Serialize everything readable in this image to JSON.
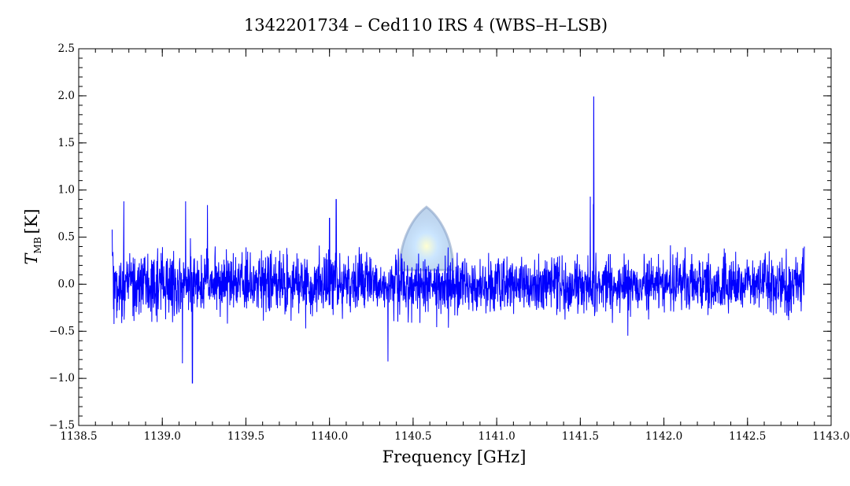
{
  "chart_data": {
    "type": "line",
    "title": "1342201734 – Ced110 IRS 4 (WBS–H–LSB)",
    "xlabel": "Frequency [GHz]",
    "ylabel": "T",
    "ylabel_subscript": "MB",
    "ylabel_unit": "[K]",
    "xlim": [
      1138.5,
      1143.0
    ],
    "ylim": [
      -1.5,
      2.5
    ],
    "x_ticks": [
      "1138.5",
      "1139.0",
      "1139.5",
      "1140.0",
      "1140.5",
      "1141.0",
      "1141.5",
      "1142.0",
      "1142.5",
      "1143.0"
    ],
    "y_ticks": [
      "2.5",
      "2.0",
      "1.5",
      "1.0",
      "0.5",
      "0.0",
      "−0.5",
      "−1.0",
      "−1.5"
    ],
    "x_tick_values": [
      1138.5,
      1139.0,
      1139.5,
      1140.0,
      1140.5,
      1141.0,
      1141.5,
      1142.0,
      1142.5,
      1143.0
    ],
    "y_tick_values": [
      2.5,
      2.0,
      1.5,
      1.0,
      0.5,
      0.0,
      -0.5,
      -1.0,
      -1.5
    ],
    "grid": false,
    "series": [
      {
        "color": "#0000ff",
        "x_range": [
          1138.7,
          1142.84
        ],
        "baseline": 0.0,
        "noise_rms": 0.15,
        "notable_points": [
          {
            "x": 1138.7,
            "y": 0.58
          },
          {
            "x": 1138.77,
            "y": 0.88
          },
          {
            "x": 1139.12,
            "y": -0.84
          },
          {
            "x": 1139.14,
            "y": 0.88
          },
          {
            "x": 1139.18,
            "y": -1.05
          },
          {
            "x": 1139.27,
            "y": 0.84
          },
          {
            "x": 1140.0,
            "y": 0.7
          },
          {
            "x": 1140.04,
            "y": 0.9
          },
          {
            "x": 1140.35,
            "y": -0.82
          },
          {
            "x": 1141.56,
            "y": 0.93
          },
          {
            "x": 1141.58,
            "y": 1.99
          },
          {
            "x": 1142.84,
            "y": 0.4
          }
        ]
      }
    ]
  },
  "colors": {
    "line": "#0000ff",
    "axes": "#000000",
    "background": "#ffffff"
  }
}
